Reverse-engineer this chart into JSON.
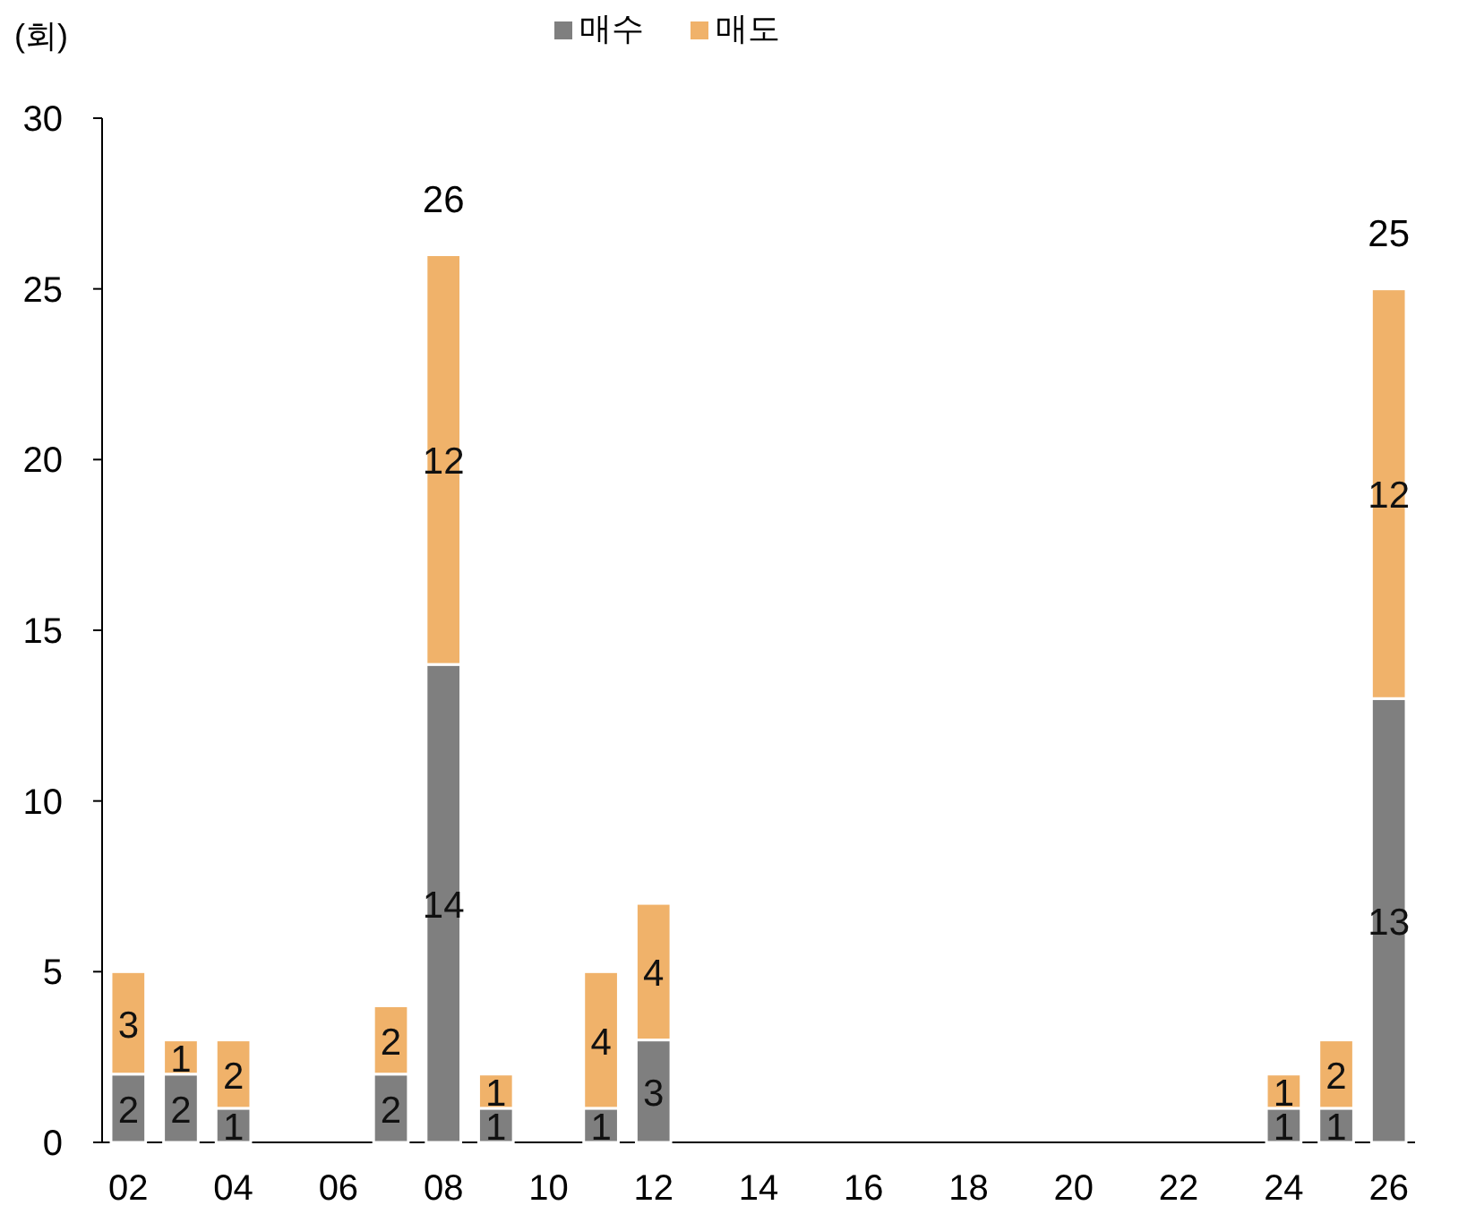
{
  "chart_data": {
    "type": "bar",
    "stacked": true,
    "data_labels": true,
    "legend": "top",
    "ylabel": "(회)",
    "categories": [
      "02",
      null,
      "04",
      null,
      "06",
      null,
      "08",
      null,
      "10",
      null,
      "12",
      null,
      "14",
      null,
      "16",
      null,
      "18",
      null,
      "20",
      null,
      "22",
      null,
      "24",
      null,
      "26"
    ],
    "series": [
      {
        "name": "매수",
        "color": "#7f7f7f",
        "values": [
          2,
          2,
          1,
          null,
          null,
          2,
          14,
          1,
          null,
          1,
          3,
          null,
          null,
          null,
          null,
          null,
          null,
          null,
          null,
          null,
          null,
          null,
          1,
          1,
          13
        ]
      },
      {
        "name": "매도",
        "color": "#f0b26a",
        "values": [
          3,
          1,
          2,
          null,
          null,
          2,
          12,
          1,
          null,
          4,
          4,
          null,
          null,
          null,
          null,
          null,
          null,
          null,
          null,
          null,
          null,
          null,
          1,
          2,
          12
        ]
      }
    ],
    "totals": [
      null,
      null,
      null,
      null,
      null,
      null,
      "26",
      null,
      null,
      null,
      null,
      null,
      null,
      null,
      null,
      null,
      null,
      null,
      null,
      null,
      null,
      null,
      null,
      null,
      "25"
    ],
    "ylim": [
      0,
      30
    ],
    "yticks": [
      0,
      5,
      10,
      15,
      20,
      25,
      30
    ]
  }
}
